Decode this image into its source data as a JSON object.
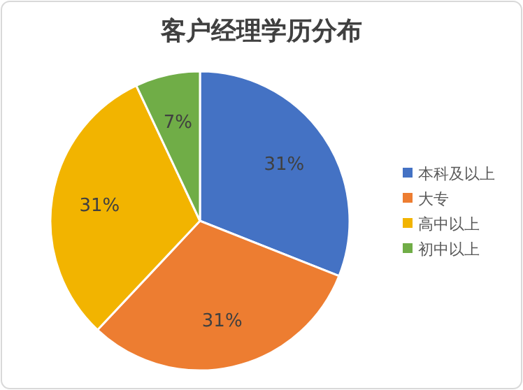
{
  "chart_data": {
    "type": "pie",
    "title": "客户经理学历分布",
    "categories": [
      "本科及以上",
      "大专",
      "高中以上",
      "初中以上"
    ],
    "values": [
      31,
      31,
      31,
      7
    ],
    "colors": [
      "#4472c4",
      "#ed7d31",
      "#f2b400",
      "#70ad47"
    ],
    "value_labels": [
      "31%",
      "31%",
      "31%",
      "7%"
    ],
    "legend": "right"
  }
}
